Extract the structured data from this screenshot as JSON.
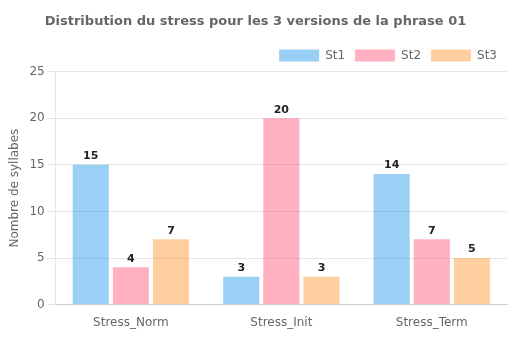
{
  "chart_data": {
    "type": "bar",
    "title": "Distribution du stress pour les 3 versions de la phrase 01",
    "ylabel": "Nombre de syllabes",
    "categories": [
      "Stress_Norm",
      "Stress_Init",
      "Stress_Term"
    ],
    "series": [
      {
        "name": "St1",
        "values": [
          15,
          3,
          14
        ]
      },
      {
        "name": "St2",
        "values": [
          4,
          20,
          7
        ]
      },
      {
        "name": "St3",
        "values": [
          7,
          3,
          5
        ]
      }
    ],
    "ylim": [
      0,
      25
    ],
    "yticks": [
      0,
      5,
      10,
      15,
      20,
      25
    ],
    "grid": true,
    "legend": "upper right",
    "data_labels": true
  }
}
